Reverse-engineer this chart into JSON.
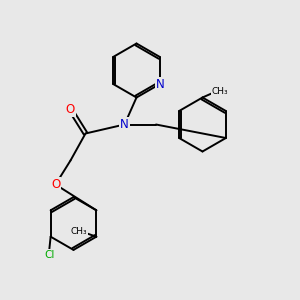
{
  "bg_color": "#e8e8e8",
  "atom_color_N": "#0000cc",
  "atom_color_O": "#ff0000",
  "atom_color_Cl": "#00aa00",
  "bond_color": "#000000",
  "bond_width": 1.4,
  "figsize": [
    3.0,
    3.0
  ],
  "dpi": 100,
  "xlim": [
    0,
    10
  ],
  "ylim": [
    0,
    10
  ]
}
